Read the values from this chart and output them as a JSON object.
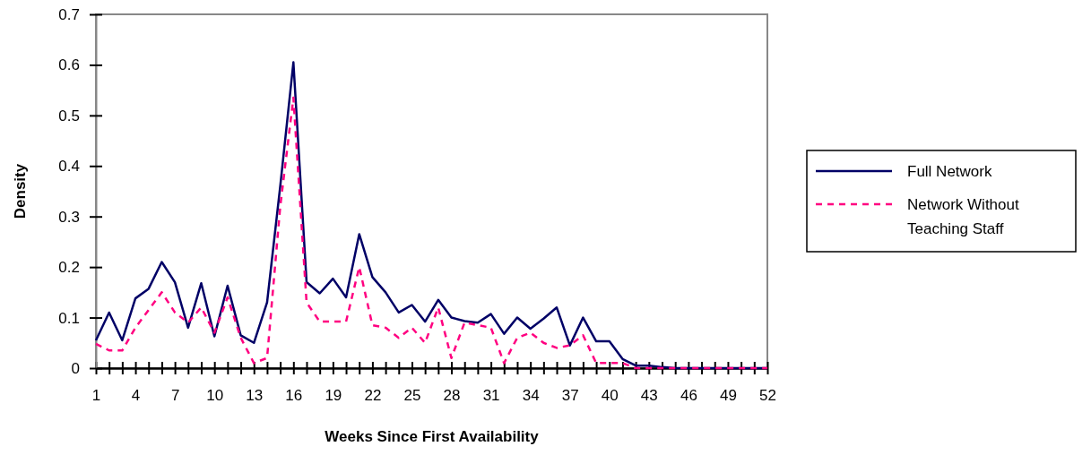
{
  "chart_data": {
    "type": "line",
    "xlabel": "Weeks Since First Availability",
    "ylabel": "Density",
    "x": [
      1,
      2,
      3,
      4,
      5,
      6,
      7,
      8,
      9,
      10,
      11,
      12,
      13,
      14,
      15,
      16,
      17,
      18,
      19,
      20,
      21,
      22,
      23,
      24,
      25,
      26,
      27,
      28,
      29,
      30,
      31,
      32,
      33,
      34,
      35,
      36,
      37,
      38,
      39,
      40,
      41,
      42,
      43,
      44,
      45,
      46,
      47,
      48,
      49,
      50,
      51,
      52
    ],
    "xlim": [
      1,
      52
    ],
    "xticks": [
      1,
      {
        "value": 2,
        "label": null
      },
      {
        "value": 3,
        "label": null
      },
      4,
      {
        "value": 5,
        "label": null
      },
      {
        "value": 6,
        "label": null
      },
      7,
      {
        "value": 8,
        "label": null
      },
      {
        "value": 9,
        "label": null
      },
      10,
      {
        "value": 11,
        "label": null
      },
      {
        "value": 12,
        "label": null
      },
      13,
      {
        "value": 14,
        "label": null
      },
      {
        "value": 15,
        "label": null
      },
      16,
      {
        "value": 17,
        "label": null
      },
      {
        "value": 18,
        "label": null
      },
      19,
      {
        "value": 20,
        "label": null
      },
      {
        "value": 21,
        "label": null
      },
      22,
      {
        "value": 23,
        "label": null
      },
      {
        "value": 24,
        "label": null
      },
      25,
      {
        "value": 26,
        "label": null
      },
      {
        "value": 27,
        "label": null
      },
      28,
      {
        "value": 29,
        "label": null
      },
      {
        "value": 30,
        "label": null
      },
      31,
      {
        "value": 32,
        "label": null
      },
      {
        "value": 33,
        "label": null
      },
      34,
      {
        "value": 35,
        "label": null
      },
      {
        "value": 36,
        "label": null
      },
      37,
      {
        "value": 38,
        "label": null
      },
      {
        "value": 39,
        "label": null
      },
      40,
      {
        "value": 41,
        "label": null
      },
      {
        "value": 42,
        "label": null
      },
      43,
      {
        "value": 44,
        "label": null
      },
      {
        "value": 45,
        "label": null
      },
      46,
      {
        "value": 47,
        "label": null
      },
      {
        "value": 48,
        "label": null
      },
      49,
      {
        "value": 50,
        "label": null
      },
      {
        "value": 51,
        "label": null
      },
      52
    ],
    "ylim": [
      0,
      0.7
    ],
    "yticks": [
      0,
      0.1,
      0.2,
      0.3,
      0.4,
      0.5,
      0.6,
      0.7
    ],
    "grid": false,
    "legend": "right",
    "marker": "none",
    "series": [
      {
        "name": "Full Network",
        "color": "#000066",
        "line_style": "solid",
        "values": [
          0.055,
          0.11,
          0.055,
          0.138,
          0.157,
          0.21,
          0.17,
          0.08,
          0.168,
          0.063,
          0.163,
          0.065,
          0.05,
          0.13,
          0.36,
          0.605,
          0.17,
          0.148,
          0.177,
          0.14,
          0.265,
          0.18,
          0.15,
          0.11,
          0.125,
          0.092,
          0.135,
          0.1,
          0.093,
          0.09,
          0.107,
          0.068,
          0.1,
          0.078,
          0.098,
          0.12,
          0.045,
          0.1,
          0.053,
          0.053,
          0.018,
          0.005,
          0.005,
          0.002,
          0,
          0,
          0,
          0,
          0,
          0,
          0,
          0
        ]
      },
      {
        "name": "Network Without Teaching Staff",
        "color": "#ff0080",
        "line_style": "dashed",
        "values": [
          0.048,
          0.035,
          0.035,
          0.08,
          0.115,
          0.15,
          0.11,
          0.09,
          0.12,
          0.07,
          0.14,
          0.06,
          0.01,
          0.02,
          0.32,
          0.535,
          0.13,
          0.092,
          0.092,
          0.092,
          0.2,
          0.085,
          0.08,
          0.06,
          0.08,
          0.05,
          0.12,
          0.02,
          0.09,
          0.085,
          0.08,
          0.01,
          0.06,
          0.07,
          0.05,
          0.04,
          0.045,
          0.065,
          0.01,
          0.01,
          0.01,
          0,
          0,
          0,
          0,
          0,
          0,
          0,
          0,
          0,
          0,
          0
        ]
      }
    ]
  }
}
